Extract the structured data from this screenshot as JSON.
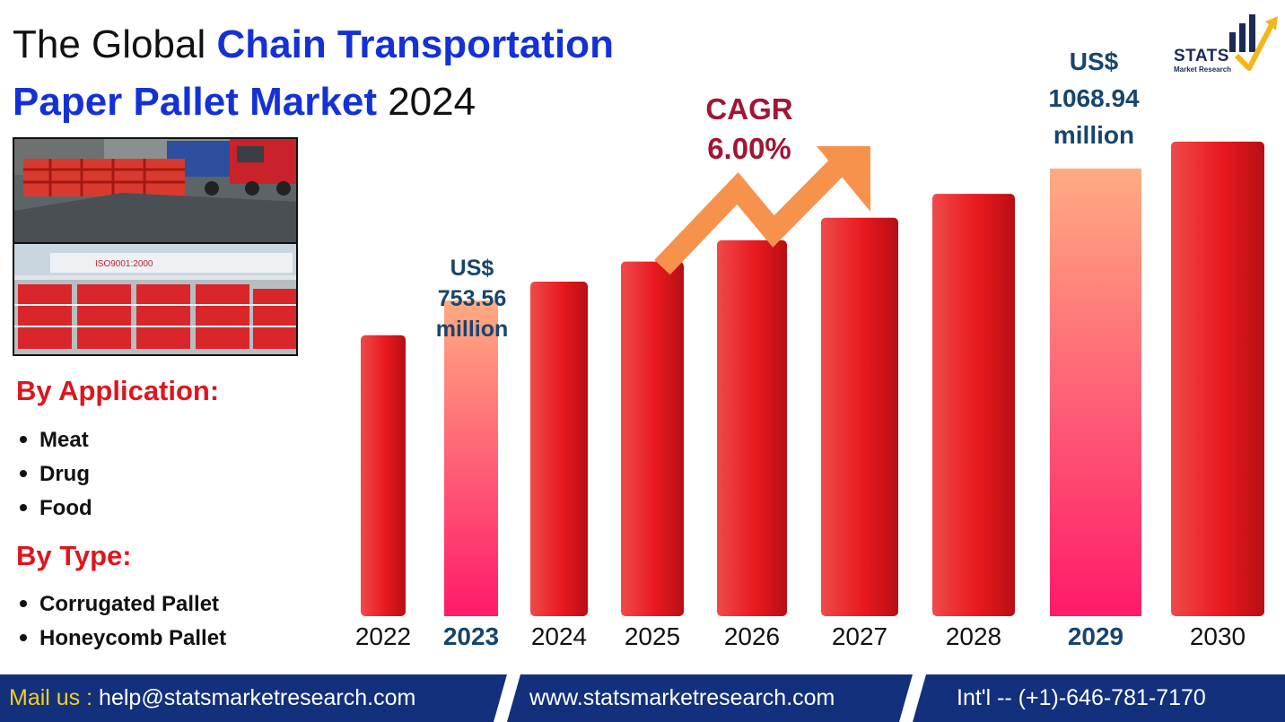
{
  "title": {
    "prefix": "The Global",
    "highlight_line1": "Chain Transportation",
    "highlight_line2": "Paper Pallet Market",
    "year": "2024"
  },
  "logo": {
    "name": "STATS",
    "sub": "Market Research"
  },
  "application": {
    "heading": "By Application:",
    "items": [
      "Meat",
      "Drug",
      "Food"
    ]
  },
  "type": {
    "heading": "By Type:",
    "items": [
      "Corrugated Pallet",
      "Honeycomb Pallet"
    ]
  },
  "cagr": {
    "label": "CAGR",
    "value": "6.00%"
  },
  "callouts": {
    "y2023": {
      "currency": "US$",
      "amount": "753.56",
      "unit": "million"
    },
    "y2029": {
      "currency": "US$",
      "amount": "1068.94",
      "unit": "million"
    }
  },
  "chart_data": {
    "type": "bar",
    "title": "The Global Chain Transportation Paper Pallet Market 2024",
    "categories": [
      "2022",
      "2023",
      "2024",
      "2025",
      "2026",
      "2027",
      "2028",
      "2029",
      "2030"
    ],
    "values": [
      670.7,
      753.56,
      798.8,
      846.7,
      897.5,
      951.3,
      1008.4,
      1068.94,
      1133.1
    ],
    "highlighted": [
      "2023",
      "2029"
    ],
    "unit": "US$ million",
    "ylim": [
      0,
      1150
    ],
    "grid": false,
    "xlabel": "",
    "ylabel": ""
  },
  "colors": {
    "bar_red": "#e8191f",
    "bar_highlight_top": "#ffab82",
    "bar_highlight_bottom": "#ff1a6a",
    "title_blue": "#1431d6",
    "section_red": "#e0151c",
    "callout_navy": "#17456e",
    "cagr_maroon": "#a11535",
    "arrow_orange": "#f7924d",
    "footer_navy": "#13307c",
    "footer_yellow": "#f2d21b"
  },
  "footer": {
    "mail_label": "Mail us :",
    "email": "help@statsmarketresearch.com",
    "website": "www.statsmarketresearch.com",
    "phone": "Int'l -- (+1)-646-781-7170"
  }
}
